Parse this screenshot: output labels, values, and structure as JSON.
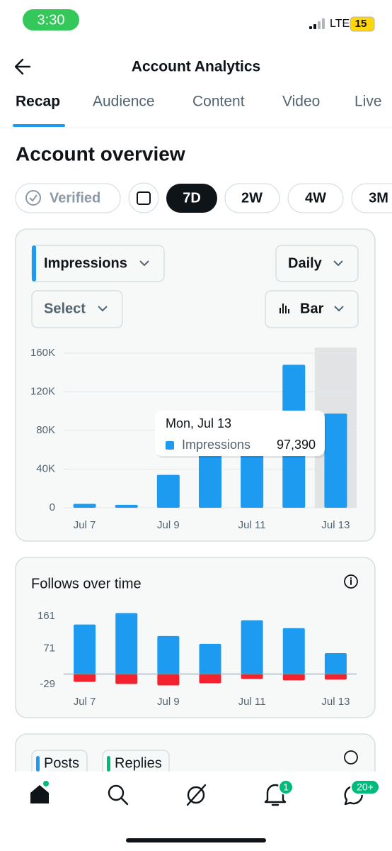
{
  "status_bar": {
    "time": "3:30",
    "network": "LTE",
    "battery": "15"
  },
  "header": {
    "title": "Account Analytics"
  },
  "tabs": [
    "Recap",
    "Audience",
    "Content",
    "Video",
    "Live"
  ],
  "section_title": "Account overview",
  "filters": [
    "Verified",
    "7D",
    "2W",
    "4W",
    "3M"
  ],
  "impressions_card": {
    "metric": "Impressions",
    "interval": "Daily",
    "compare": "Select",
    "chart_style": "Bar"
  },
  "follows_card": {
    "title": "Follows over time"
  },
  "posts_card": {
    "tabs": [
      "Posts",
      "Replies"
    ]
  },
  "nav_badges": {
    "notifications": "1",
    "messages": "20+"
  },
  "chart_data": [
    {
      "type": "bar",
      "categories": [
        "Jul 7",
        null,
        "Jul 9",
        null,
        "Jul 11",
        null,
        "Jul 13"
      ],
      "values": [
        4000,
        3000,
        34000,
        70000,
        80000,
        148000,
        97390
      ],
      "color": "#1d9bf0",
      "ylim": [
        0,
        160000
      ],
      "yticks": [
        0,
        {
          "value": 40000,
          "label": "40K"
        },
        {
          "value": 80000,
          "label": "80K"
        },
        {
          "value": 120000,
          "label": "120K"
        },
        {
          "value": 160000,
          "label": "160K"
        }
      ],
      "grid": true,
      "selected_index": 6,
      "tooltip": {
        "title": "Mon, Jul 13",
        "series": "Impressions",
        "value_label": "97,390"
      }
    },
    {
      "type": "bar",
      "categories": [
        "Jul 7",
        null,
        "Jul 9",
        null,
        "Jul 11",
        null,
        "Jul 13"
      ],
      "series": [
        {
          "color": "#1d9bf0",
          "values": [
            138,
            170,
            106,
            84,
            150,
            128,
            58
          ]
        },
        {
          "color": "#f4212e",
          "values": [
            -22,
            -28,
            -32,
            -26,
            -14,
            -18,
            -16
          ]
        }
      ],
      "ylim": [
        -35,
        175
      ],
      "yticks": [
        -29,
        71,
        161
      ],
      "grid": false
    }
  ]
}
